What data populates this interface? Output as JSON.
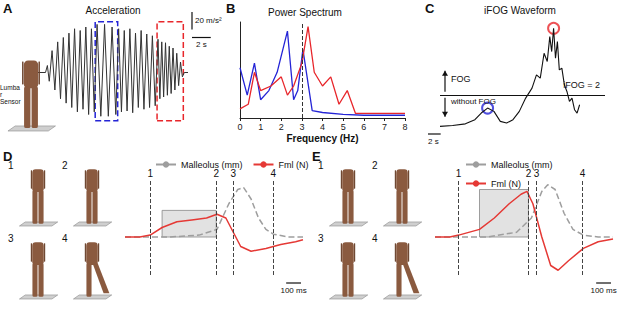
{
  "chart_data": [
    {
      "label": "A",
      "type": "line",
      "title": "Acceleration",
      "annotations": [
        "Lumbar Sensor"
      ],
      "scale_bars": [
        {
          "axis": "y",
          "value": 20,
          "label": "20 m/s²"
        },
        {
          "axis": "x",
          "value": 2,
          "label": "2 s"
        }
      ],
      "xlim": [
        0,
        16
      ],
      "ylim": [
        -60,
        60
      ],
      "tick_labels": false,
      "grid": false,
      "boxes": [
        {
          "x": [
            6.1,
            8.5
          ],
          "y": [
            -55,
            58
          ],
          "color": "#2424d6"
        },
        {
          "x": [
            12.7,
            15.5
          ],
          "y": [
            -55,
            58
          ],
          "color": "#e8262b"
        }
      ],
      "series": [
        {
          "color": "#333333",
          "marker": "none",
          "line_style": "solid",
          "x": [
            0,
            0.8,
            1.0,
            1.2,
            1.5,
            1.8,
            2.1,
            2.4,
            2.7,
            3.0,
            3.3,
            3.6,
            3.9,
            4.2,
            4.5,
            4.8,
            5.1,
            5.4,
            5.7,
            6.0,
            6.3,
            6.7,
            7.1,
            7.5,
            7.9,
            8.3,
            8.6,
            8.9,
            9.2,
            9.5,
            9.8,
            10.1,
            10.4,
            10.7,
            11.0,
            11.3,
            11.6,
            11.9,
            12.2,
            12.5,
            12.8,
            13.0,
            13.2,
            13.4,
            13.6,
            13.8,
            14.0,
            14.2,
            14.4,
            14.6,
            14.8,
            15.0,
            15.2,
            15.4,
            15.6,
            16
          ],
          "values": [
            0,
            0,
            8,
            -10,
            25,
            -20,
            35,
            -30,
            40,
            -35,
            45,
            -40,
            50,
            -45,
            48,
            -42,
            52,
            -48,
            50,
            -45,
            55,
            -50,
            55,
            -50,
            52,
            -48,
            50,
            -45,
            48,
            -44,
            50,
            -46,
            45,
            -40,
            48,
            -42,
            44,
            -40,
            42,
            -38,
            38,
            -30,
            35,
            -28,
            34,
            -26,
            30,
            -24,
            28,
            -20,
            22,
            -15,
            12,
            -5,
            0,
            0
          ]
        }
      ]
    },
    {
      "label": "B",
      "type": "line",
      "title": "Power Spectrum",
      "x_label": "Frequency (Hz)",
      "xlim": [
        0,
        8
      ],
      "xticks": [
        0,
        1,
        2,
        3,
        4,
        5,
        6,
        7,
        8
      ],
      "ylim": [
        0,
        1.05
      ],
      "tick_labels": "x",
      "grid": false,
      "reference_line": 3,
      "series": [
        {
          "color": "#2424d6",
          "marker": "none",
          "line_style": "solid",
          "x": [
            0,
            0.35,
            0.7,
            1.0,
            1.4,
            1.8,
            2.3,
            2.6,
            2.8,
            3.05,
            3.5,
            4.0,
            5.0,
            6.0,
            8.0
          ],
          "values": [
            0.55,
            0.25,
            0.6,
            0.2,
            0.3,
            0.5,
            0.95,
            0.2,
            0.3,
            0.75,
            0.08,
            0.06,
            0.04,
            0.03,
            0.03
          ]
        },
        {
          "color": "#e8262b",
          "marker": "none",
          "line_style": "solid",
          "x": [
            0,
            0.4,
            0.7,
            1.0,
            1.5,
            2.0,
            2.3,
            2.6,
            3.0,
            3.3,
            3.6,
            4.0,
            4.4,
            4.8,
            5.2,
            5.6,
            6.0,
            8.0
          ],
          "values": [
            0.1,
            0.15,
            0.5,
            0.3,
            0.35,
            0.45,
            0.25,
            0.35,
            0.6,
            1.0,
            0.5,
            0.35,
            0.45,
            0.15,
            0.3,
            0.05,
            0.05,
            0.05
          ]
        }
      ]
    },
    {
      "label": "C",
      "type": "line",
      "title": "iFOG Waveform",
      "annotations": [
        "FOG",
        "without FOG"
      ],
      "threshold": {
        "value": 2,
        "label": "iFOG = 2"
      },
      "scale_bars": [
        {
          "axis": "x",
          "value": 2,
          "label": "2 s"
        }
      ],
      "xlim": [
        0,
        26
      ],
      "ylim": [
        0,
        6.5
      ],
      "tick_labels": false,
      "grid": false,
      "series": [
        {
          "color": "#111111",
          "marker": "none",
          "line_style": "solid",
          "x": [
            0,
            2,
            4,
            5.5,
            6.5,
            7.5,
            8.5,
            9.5,
            10.5,
            11.5,
            12.5,
            13.5,
            14.5,
            15.2,
            15.8,
            16.4,
            16.9,
            17.3,
            17.6,
            17.9,
            18.2,
            18.5,
            18.8,
            19.2,
            19.6,
            20,
            20.4,
            20.8,
            21.2,
            21.6,
            22
          ],
          "values": [
            0.1,
            0.15,
            0.25,
            0.5,
            0.9,
            1.2,
            1.0,
            0.4,
            0.3,
            0.5,
            1.0,
            1.8,
            2.4,
            3.2,
            3.0,
            4.5,
            4.0,
            5.5,
            4.6,
            6.0,
            4.2,
            5.2,
            3.5,
            3.6,
            2.6,
            2.2,
            1.6,
            1.8,
            1.1,
            0.9,
            1.4
          ]
        },
        {
          "type": "scatter",
          "color": "#2424d6",
          "marker": "open_circle",
          "x": [
            7.5
          ],
          "values": [
            1.2
          ]
        },
        {
          "type": "scatter",
          "color": "#e8262b",
          "marker": "open_circle",
          "x": [
            17.9
          ],
          "values": [
            6.0
          ]
        }
      ]
    },
    {
      "label": "D",
      "type": "line",
      "legend": "top",
      "pose_labels": [
        "1",
        "2",
        "3",
        "4"
      ],
      "events": [
        {
          "value": 170,
          "label": "1"
        },
        {
          "value": 615,
          "label": "2"
        },
        {
          "value": 730,
          "label": "3"
        },
        {
          "value": 1000,
          "label": "4"
        }
      ],
      "shaded_region": {
        "x": [
          250,
          615
        ],
        "y": [
          0,
          28
        ]
      },
      "scale_bars": [
        {
          "axis": "x",
          "value": 100,
          "label": "100 ms"
        }
      ],
      "xlim": [
        0,
        1200
      ],
      "ylim": [
        -40,
        60
      ],
      "tick_labels": false,
      "grid": false,
      "series": [
        {
          "name": "Malleolus (mm)",
          "color": "#9e9e9e",
          "marker": "none",
          "line_style": "dashed",
          "x": [
            0,
            300,
            500,
            620,
            700,
            760,
            800,
            850,
            900,
            950,
            1000,
            1100,
            1200
          ],
          "values": [
            0,
            0,
            2,
            8,
            35,
            50,
            52,
            40,
            20,
            8,
            3,
            0,
            0
          ]
        },
        {
          "name": "Fml (N)",
          "color": "#e53935",
          "marker": "none",
          "line_style": "solid",
          "x": [
            0,
            100,
            170,
            250,
            350,
            450,
            550,
            620,
            680,
            730,
            780,
            850,
            950,
            1050,
            1150,
            1200
          ],
          "values": [
            0,
            0,
            2,
            10,
            16,
            18,
            20,
            24,
            20,
            5,
            -10,
            -15,
            -12,
            -8,
            -5,
            -3
          ]
        }
      ]
    },
    {
      "label": "E",
      "type": "line",
      "legend": "top",
      "pose_labels": [
        "1",
        "2",
        "3",
        "4"
      ],
      "events": [
        {
          "value": 158,
          "label": "1"
        },
        {
          "value": 630,
          "label": "2"
        },
        {
          "value": 685,
          "label": "3"
        },
        {
          "value": 995,
          "label": "4"
        }
      ],
      "shaded_region": {
        "x": [
          300,
          630
        ],
        "y": [
          0,
          50
        ]
      },
      "scale_bars": [
        {
          "axis": "x",
          "value": 100,
          "label": "100 ms"
        }
      ],
      "xlim": [
        0,
        1200
      ],
      "ylim": [
        -40,
        60
      ],
      "tick_labels": false,
      "grid": false,
      "series": [
        {
          "name": "Malleolus (mm)",
          "color": "#9e9e9e",
          "marker": "none",
          "line_style": "dashed",
          "x": [
            0,
            350,
            550,
            650,
            720,
            760,
            810,
            870,
            930,
            1000,
            1100,
            1200
          ],
          "values": [
            0,
            0,
            5,
            20,
            48,
            55,
            50,
            25,
            8,
            2,
            0,
            0
          ]
        },
        {
          "name": "Fml (N)",
          "color": "#e53935",
          "marker": "none",
          "line_style": "solid",
          "x": [
            0,
            100,
            160,
            300,
            400,
            500,
            580,
            620,
            660,
            720,
            780,
            830,
            900,
            1000,
            1100,
            1200
          ],
          "values": [
            0,
            0,
            2,
            8,
            20,
            35,
            45,
            48,
            35,
            0,
            -30,
            -35,
            -25,
            -12,
            -5,
            -2
          ]
        }
      ]
    }
  ]
}
